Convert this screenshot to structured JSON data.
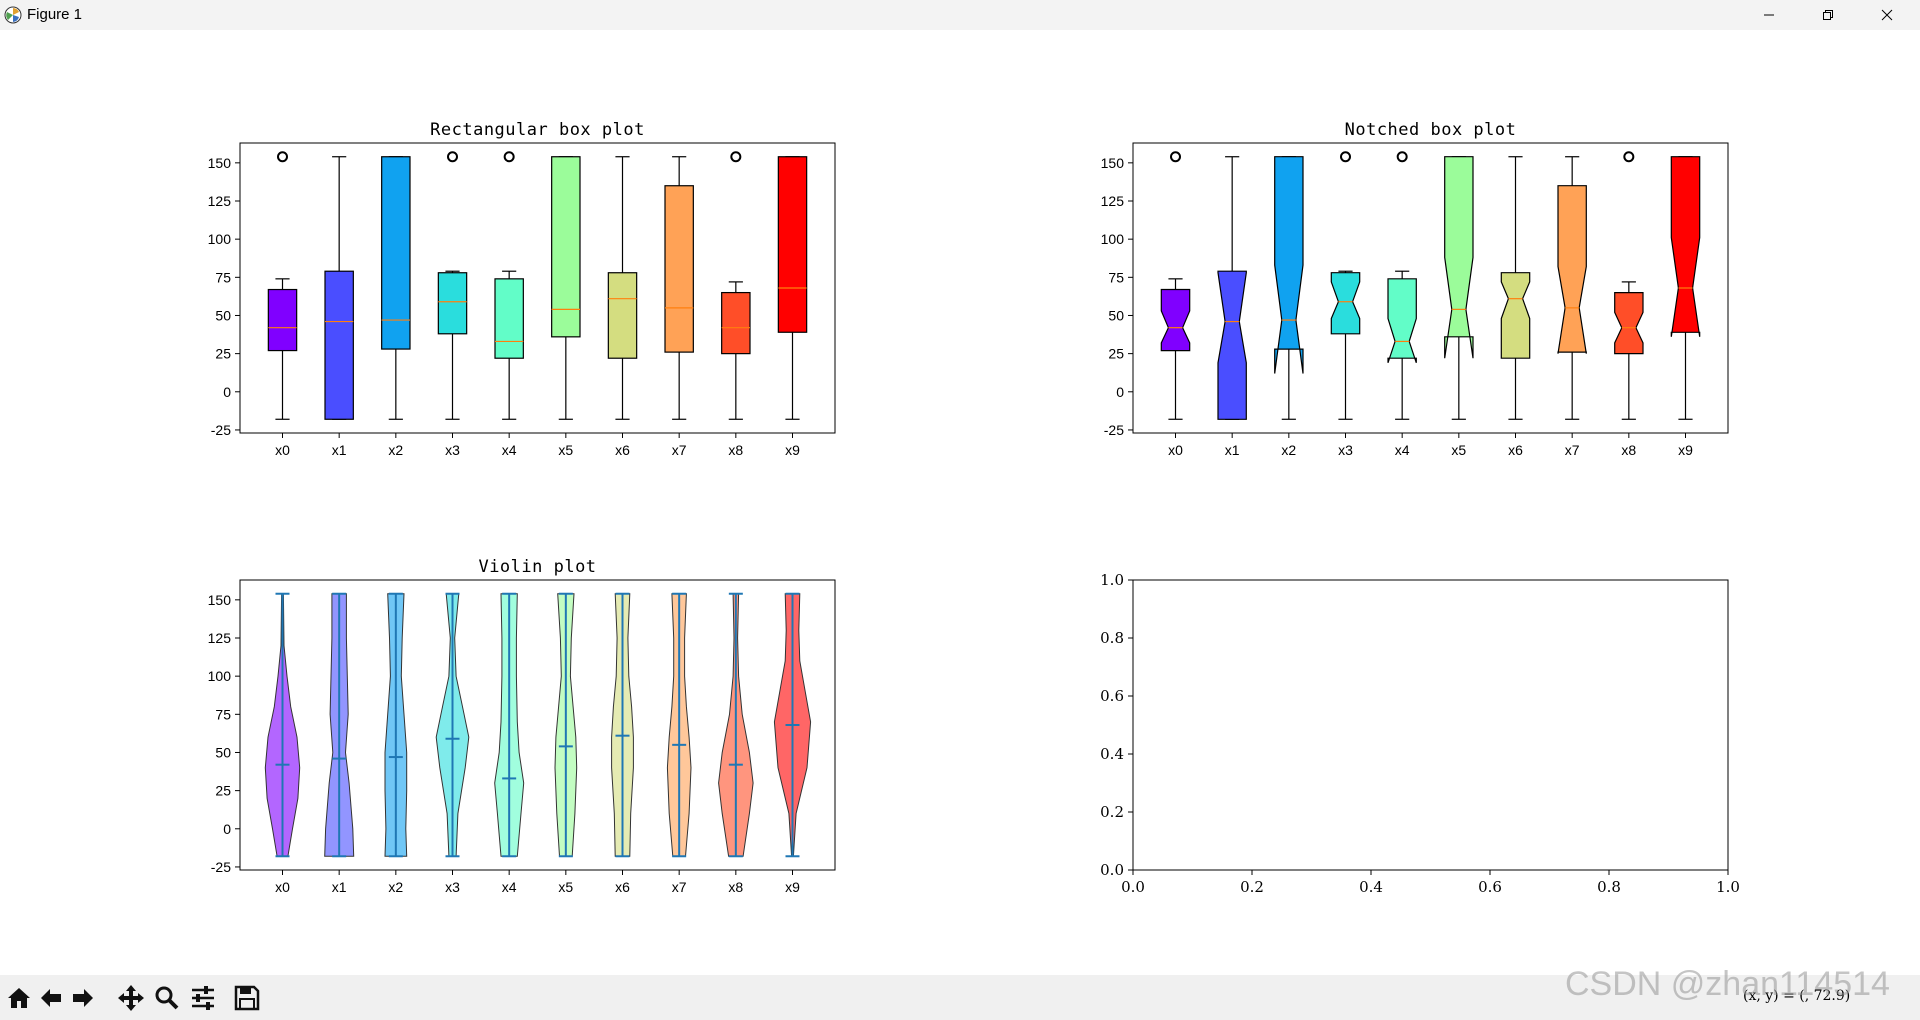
{
  "window": {
    "title": "Figure 1"
  },
  "coords_readout": "(x, y) = (, 72.9)",
  "watermark": "CSDN @zhan114514",
  "palette": [
    "#8000ff",
    "#4a4eff",
    "#10a2f0",
    "#2adddd",
    "#62fdc8",
    "#9bfc9a",
    "#d4dd80",
    "#ffa256",
    "#ff4e28",
    "#ff0000"
  ],
  "chart_data": [
    {
      "type": "box",
      "title": "Rectangular box plot",
      "notch": false,
      "categories": [
        "x0",
        "x1",
        "x2",
        "x3",
        "x4",
        "x5",
        "x6",
        "x7",
        "x8",
        "x9"
      ],
      "ylim": [
        -27,
        163
      ],
      "yticks": [
        -25,
        0,
        25,
        50,
        75,
        100,
        125,
        150
      ],
      "boxes": [
        {
          "whislo": -18,
          "q1": 27,
          "med": 42,
          "q3": 67,
          "whishi": 74,
          "fliers": [
            154
          ]
        },
        {
          "whislo": -18,
          "q1": -18,
          "med": 46,
          "q3": 79,
          "whishi": 154,
          "fliers": []
        },
        {
          "whislo": -18,
          "q1": 28,
          "med": 47,
          "q3": 154,
          "whishi": 154,
          "fliers": []
        },
        {
          "whislo": -18,
          "q1": 38,
          "med": 59,
          "q3": 78,
          "whishi": 79,
          "fliers": [
            154
          ]
        },
        {
          "whislo": -18,
          "q1": 22,
          "med": 33,
          "q3": 74,
          "whishi": 79,
          "fliers": [
            154
          ]
        },
        {
          "whislo": -18,
          "q1": 36,
          "med": 54,
          "q3": 154,
          "whishi": 154,
          "fliers": []
        },
        {
          "whislo": -18,
          "q1": 22,
          "med": 61,
          "q3": 78,
          "whishi": 154,
          "fliers": []
        },
        {
          "whislo": -18,
          "q1": 26,
          "med": 55,
          "q3": 135,
          "whishi": 154,
          "fliers": []
        },
        {
          "whislo": -18,
          "q1": 25,
          "med": 42,
          "q3": 65,
          "whishi": 72,
          "fliers": [
            154
          ]
        },
        {
          "whislo": -18,
          "q1": 39,
          "med": 68,
          "q3": 154,
          "whishi": 154,
          "fliers": []
        }
      ]
    },
    {
      "type": "box",
      "title": "Notched box plot",
      "notch": true,
      "categories": [
        "x0",
        "x1",
        "x2",
        "x3",
        "x4",
        "x5",
        "x6",
        "x7",
        "x8",
        "x9"
      ],
      "ylim": [
        -27,
        163
      ],
      "yticks": [
        -25,
        0,
        25,
        50,
        75,
        100,
        125,
        150
      ],
      "boxes": [
        {
          "whislo": -18,
          "q1": 27,
          "med": 42,
          "q3": 67,
          "whishi": 74,
          "fliers": [
            154
          ],
          "cilo": 32,
          "cihi": 53
        },
        {
          "whislo": -18,
          "q1": -18,
          "med": 46,
          "q3": 79,
          "whishi": 154,
          "fliers": [],
          "cilo": 19,
          "cihi": 78
        },
        {
          "whislo": -18,
          "q1": 28,
          "med": 47,
          "q3": 154,
          "whishi": 154,
          "fliers": [],
          "cilo": 12,
          "cihi": 83
        },
        {
          "whislo": -18,
          "q1": 38,
          "med": 59,
          "q3": 78,
          "whishi": 79,
          "fliers": [
            154
          ],
          "cilo": 48,
          "cihi": 72
        },
        {
          "whislo": -18,
          "q1": 22,
          "med": 33,
          "q3": 74,
          "whishi": 79,
          "fliers": [
            154
          ],
          "cilo": 19,
          "cihi": 48
        },
        {
          "whislo": -18,
          "q1": 36,
          "med": 54,
          "q3": 154,
          "whishi": 154,
          "fliers": [],
          "cilo": 22,
          "cihi": 88
        },
        {
          "whislo": -18,
          "q1": 22,
          "med": 61,
          "q3": 78,
          "whishi": 154,
          "fliers": [],
          "cilo": 48,
          "cihi": 72
        },
        {
          "whislo": -18,
          "q1": 26,
          "med": 55,
          "q3": 135,
          "whishi": 154,
          "fliers": [],
          "cilo": 25,
          "cihi": 82
        },
        {
          "whislo": -18,
          "q1": 25,
          "med": 42,
          "q3": 65,
          "whishi": 72,
          "fliers": [
            154
          ],
          "cilo": 32,
          "cihi": 52
        },
        {
          "whislo": -18,
          "q1": 39,
          "med": 68,
          "q3": 154,
          "whishi": 154,
          "fliers": [],
          "cilo": 36,
          "cihi": 101
        }
      ]
    },
    {
      "type": "violin",
      "title": "Violin plot",
      "categories": [
        "x0",
        "x1",
        "x2",
        "x3",
        "x4",
        "x5",
        "x6",
        "x7",
        "x8",
        "x9"
      ],
      "ylim": [
        -27,
        163
      ],
      "yticks": [
        -25,
        0,
        25,
        50,
        75,
        100,
        125,
        150
      ],
      "violins": [
        {
          "min": -18,
          "max": 154,
          "median": 42,
          "profile": [
            [
              -18,
              0.3
            ],
            [
              0,
              0.55
            ],
            [
              20,
              0.85
            ],
            [
              40,
              0.95
            ],
            [
              60,
              0.8
            ],
            [
              80,
              0.45
            ],
            [
              100,
              0.25
            ],
            [
              120,
              0.08
            ],
            [
              154,
              0.05
            ]
          ]
        },
        {
          "min": -18,
          "max": 154,
          "median": 46,
          "profile": [
            [
              -18,
              0.8
            ],
            [
              0,
              0.75
            ],
            [
              30,
              0.55
            ],
            [
              50,
              0.35
            ],
            [
              75,
              0.5
            ],
            [
              100,
              0.45
            ],
            [
              125,
              0.4
            ],
            [
              154,
              0.4
            ]
          ]
        },
        {
          "min": -18,
          "max": 154,
          "median": 47,
          "profile": [
            [
              -18,
              0.6
            ],
            [
              0,
              0.55
            ],
            [
              25,
              0.6
            ],
            [
              50,
              0.6
            ],
            [
              75,
              0.45
            ],
            [
              100,
              0.3
            ],
            [
              125,
              0.35
            ],
            [
              154,
              0.45
            ]
          ]
        },
        {
          "min": -18,
          "max": 154,
          "median": 59,
          "profile": [
            [
              -18,
              0.2
            ],
            [
              10,
              0.3
            ],
            [
              40,
              0.7
            ],
            [
              60,
              0.9
            ],
            [
              80,
              0.55
            ],
            [
              100,
              0.2
            ],
            [
              125,
              0.12
            ],
            [
              154,
              0.35
            ]
          ]
        },
        {
          "min": -18,
          "max": 154,
          "median": 33,
          "profile": [
            [
              -18,
              0.45
            ],
            [
              10,
              0.65
            ],
            [
              30,
              0.8
            ],
            [
              50,
              0.55
            ],
            [
              70,
              0.45
            ],
            [
              100,
              0.4
            ],
            [
              125,
              0.4
            ],
            [
              154,
              0.45
            ]
          ]
        },
        {
          "min": -18,
          "max": 154,
          "median": 54,
          "profile": [
            [
              -18,
              0.35
            ],
            [
              10,
              0.5
            ],
            [
              40,
              0.6
            ],
            [
              60,
              0.55
            ],
            [
              80,
              0.4
            ],
            [
              100,
              0.25
            ],
            [
              125,
              0.3
            ],
            [
              154,
              0.45
            ]
          ]
        },
        {
          "min": -18,
          "max": 154,
          "median": 61,
          "profile": [
            [
              -18,
              0.4
            ],
            [
              10,
              0.45
            ],
            [
              40,
              0.6
            ],
            [
              60,
              0.6
            ],
            [
              80,
              0.5
            ],
            [
              100,
              0.35
            ],
            [
              125,
              0.3
            ],
            [
              154,
              0.4
            ]
          ]
        },
        {
          "min": -18,
          "max": 154,
          "median": 55,
          "profile": [
            [
              -18,
              0.35
            ],
            [
              10,
              0.55
            ],
            [
              40,
              0.65
            ],
            [
              60,
              0.55
            ],
            [
              80,
              0.4
            ],
            [
              100,
              0.3
            ],
            [
              125,
              0.3
            ],
            [
              154,
              0.4
            ]
          ]
        },
        {
          "min": -18,
          "max": 154,
          "median": 42,
          "profile": [
            [
              -18,
              0.4
            ],
            [
              10,
              0.75
            ],
            [
              30,
              0.95
            ],
            [
              50,
              0.75
            ],
            [
              75,
              0.35
            ],
            [
              100,
              0.15
            ],
            [
              125,
              0.1
            ],
            [
              154,
              0.15
            ]
          ]
        },
        {
          "min": -18,
          "max": 154,
          "median": 68,
          "profile": [
            [
              -18,
              0.05
            ],
            [
              10,
              0.2
            ],
            [
              40,
              0.8
            ],
            [
              70,
              1.0
            ],
            [
              90,
              0.7
            ],
            [
              110,
              0.4
            ],
            [
              130,
              0.35
            ],
            [
              154,
              0.4
            ]
          ]
        }
      ]
    },
    {
      "type": "empty",
      "title": "",
      "xlim": [
        0,
        1
      ],
      "ylim": [
        0,
        1
      ],
      "xticks": [
        "0.0",
        "0.2",
        "0.4",
        "0.6",
        "0.8",
        "1.0"
      ],
      "yticks": [
        "0.0",
        "0.2",
        "0.4",
        "0.6",
        "0.8",
        "1.0"
      ]
    }
  ]
}
